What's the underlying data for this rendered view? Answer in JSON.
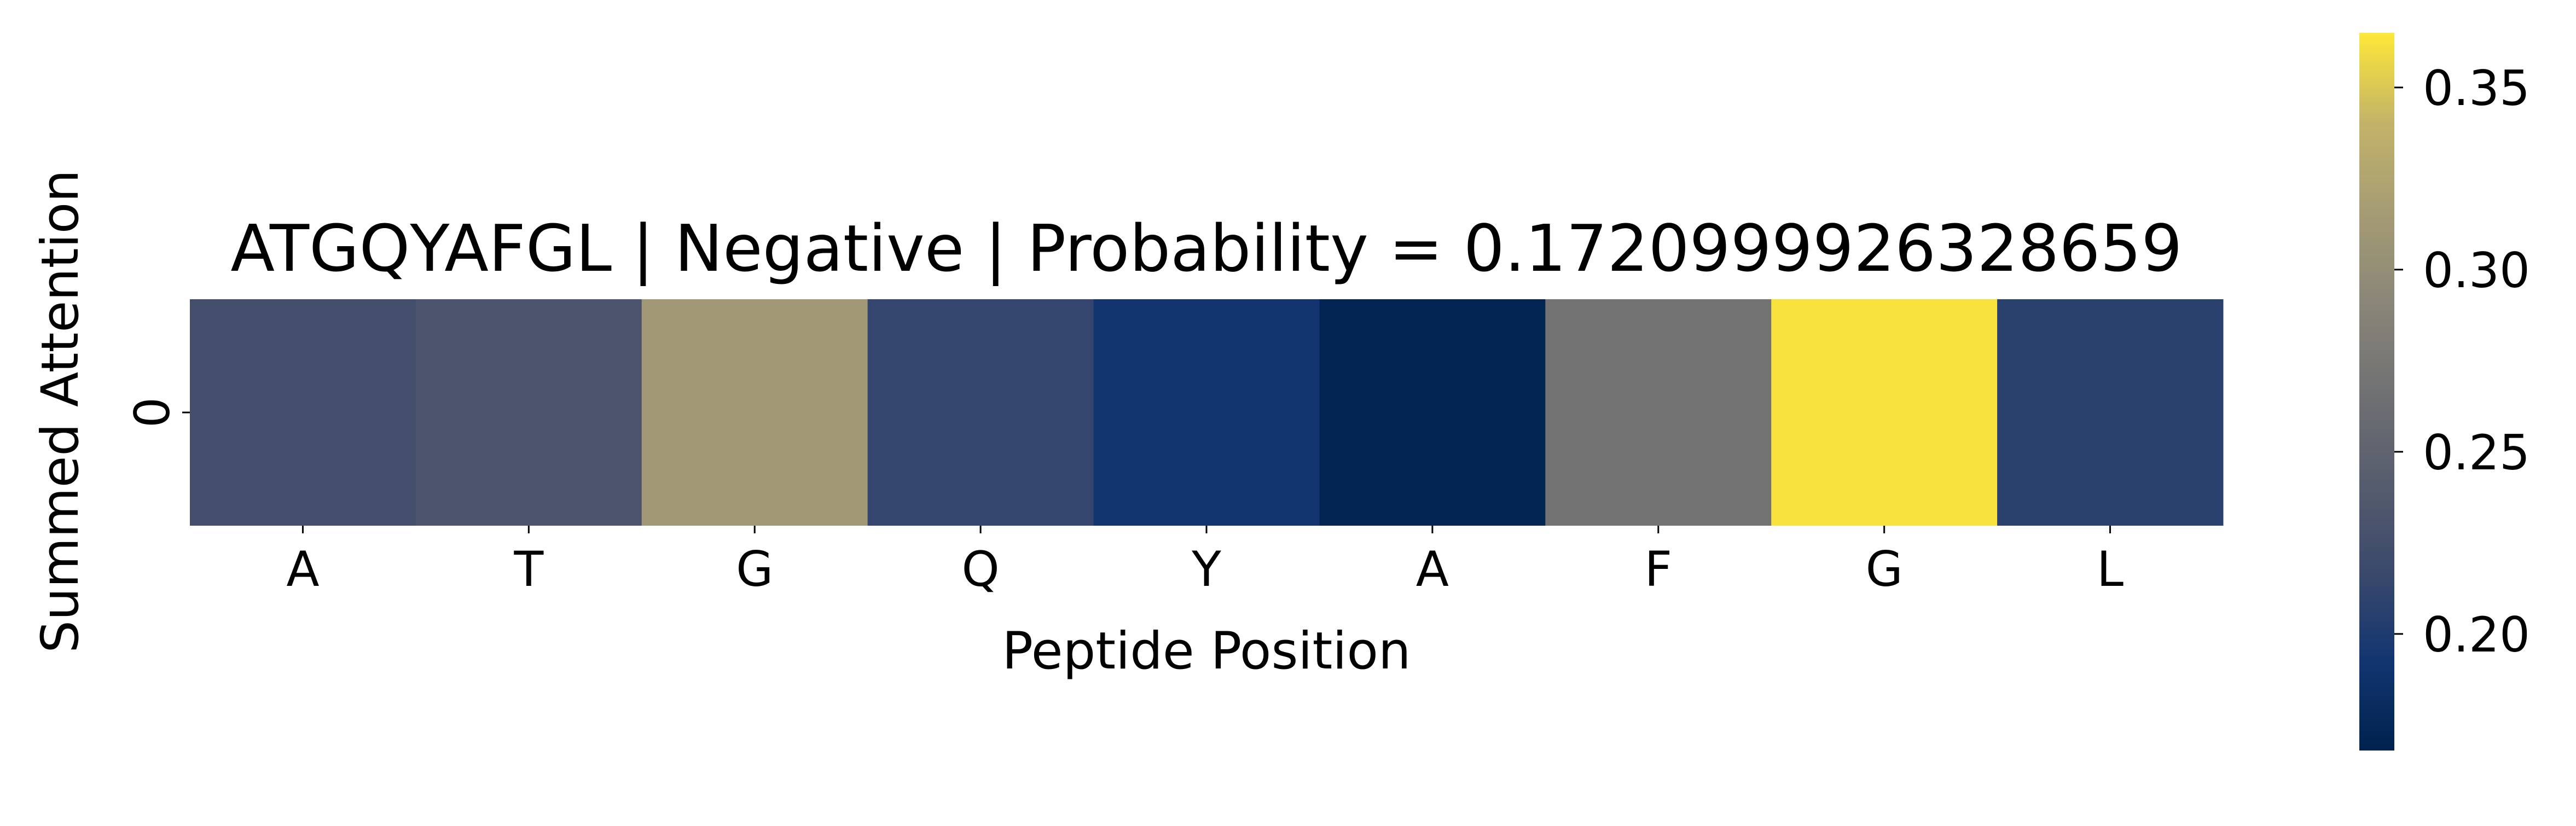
{
  "chart_data": {
    "type": "heatmap",
    "title": "ATGQYAFGL | Negative | Probability = 0.1720999926328659",
    "xlabel": "Peptide Position",
    "ylabel": "Summed Attention",
    "x_categories": [
      "A",
      "T",
      "G",
      "Q",
      "Y",
      "A",
      "F",
      "G",
      "L"
    ],
    "y_categories": [
      "0"
    ],
    "values": [
      [
        0.223,
        0.232,
        0.312,
        0.213,
        0.192,
        0.172,
        0.268,
        0.362,
        0.207
      ]
    ],
    "colormap": "cividis",
    "colorbar": {
      "range": [
        0.168,
        0.365
      ],
      "ticks": [
        0.2,
        0.25,
        0.3,
        0.35
      ],
      "tick_labels": [
        "0.20",
        "0.25",
        "0.30",
        "0.35"
      ]
    },
    "grid": false,
    "legend": "none"
  }
}
